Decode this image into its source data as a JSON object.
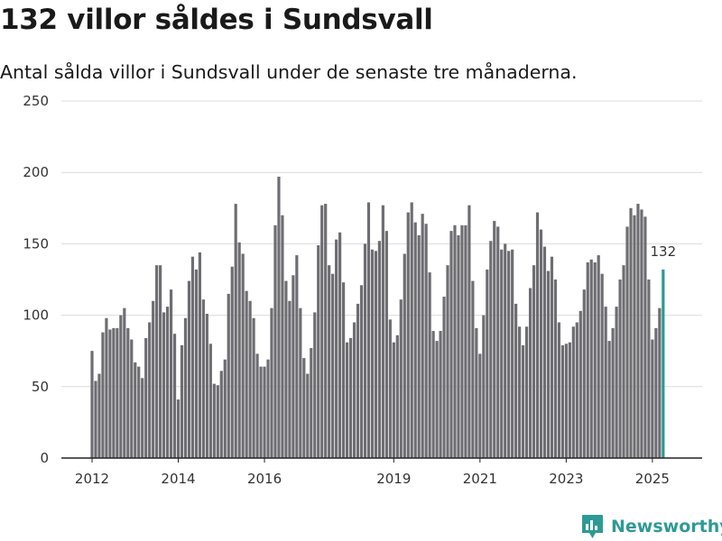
{
  "header": {
    "title": "132 villor såldes i Sundsvall",
    "subtitle": "Antal sålda villor i Sundsvall under de senaste tre månaderna."
  },
  "brand": {
    "name": "Newsworthy",
    "icon": "bar-chart-logo-icon",
    "color": "#2e9a94"
  },
  "colors": {
    "bar": "#6e6d72",
    "highlight": "#2a9a95",
    "grid": "#dcdcdc",
    "axis": "#333333"
  },
  "chart_data": {
    "type": "bar",
    "title": "132 villor såldes i Sundsvall",
    "subtitle": "Antal sålda villor i Sundsvall under de senaste tre månaderna.",
    "xlabel": "",
    "ylabel": "",
    "ylim": [
      0,
      250
    ],
    "yticks": [
      0,
      50,
      100,
      150,
      200,
      250
    ],
    "xtick_labels": [
      "2012",
      "2014",
      "2016",
      "2019",
      "2021",
      "2023",
      "2025"
    ],
    "xtick_dates": [
      "2012-01",
      "2014-01",
      "2016-01",
      "2019-01",
      "2021-01",
      "2023-01",
      "2025-01"
    ],
    "grid": true,
    "start": "2012-01",
    "end": "2025-04",
    "values": [
      75,
      54,
      59,
      88,
      98,
      90,
      91,
      91,
      100,
      105,
      91,
      83,
      67,
      64,
      56,
      84,
      95,
      110,
      135,
      135,
      102,
      106,
      118,
      87,
      41,
      79,
      98,
      124,
      141,
      132,
      144,
      111,
      101,
      80,
      52,
      51,
      61,
      69,
      115,
      134,
      178,
      151,
      143,
      117,
      110,
      98,
      73,
      64,
      64,
      69,
      105,
      163,
      197,
      170,
      124,
      110,
      128,
      142,
      105,
      70,
      59,
      77,
      102,
      149,
      177,
      178,
      135,
      129,
      153,
      158,
      123,
      81,
      84,
      95,
      108,
      121,
      150,
      179,
      146,
      145,
      152,
      177,
      159,
      97,
      81,
      86,
      111,
      143,
      172,
      179,
      165,
      156,
      171,
      164,
      130,
      89,
      82,
      89,
      113,
      135,
      159,
      163,
      156,
      163,
      163,
      177,
      124,
      91,
      73,
      100,
      132,
      152,
      166,
      162,
      146,
      150,
      145,
      146,
      108,
      92,
      79,
      92,
      119,
      135,
      172,
      160,
      148,
      131,
      141,
      125,
      95,
      79,
      80,
      81,
      92,
      95,
      103,
      118,
      137,
      139,
      137,
      142,
      129,
      106,
      82,
      91,
      106,
      125,
      135,
      162,
      175,
      170,
      178,
      174,
      169,
      125,
      83,
      91,
      105,
      132
    ],
    "highlight": {
      "date": "2025-04",
      "value": 132,
      "label": "132"
    }
  }
}
